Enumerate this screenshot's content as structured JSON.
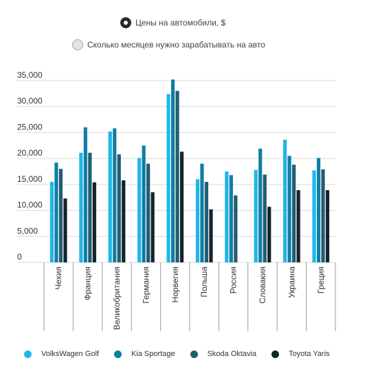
{
  "toggle": {
    "options": [
      {
        "label": "Цены на автомобили, $",
        "selected": true
      },
      {
        "label": "Сколько месяцев нужно зарабатывать на авто",
        "selected": false
      }
    ]
  },
  "colors": {
    "grid": "#d9d9d9",
    "axis_text": "#333333",
    "series": [
      "#1fb6e8",
      "#117ea6",
      "#215d74",
      "#13242c"
    ]
  },
  "chart_data": {
    "type": "bar",
    "categories": [
      "Чехия",
      "Франция",
      "Великобритания",
      "Германия",
      "Норвегия",
      "Польша",
      "Россия",
      "Словакия",
      "Украина",
      "Греция"
    ],
    "series": [
      {
        "name": "VolksWagen Golf",
        "values": [
          15500,
          21100,
          25200,
          20100,
          32400,
          16000,
          17500,
          17800,
          23600,
          17700
        ]
      },
      {
        "name": "Kia Sportage",
        "values": [
          19200,
          26000,
          25800,
          22500,
          35200,
          19000,
          16800,
          21900,
          20500,
          20100
        ]
      },
      {
        "name": "Skoda Oktavia",
        "values": [
          18000,
          21100,
          20800,
          19000,
          33000,
          15500,
          12900,
          16900,
          18800,
          17900
        ]
      },
      {
        "name": "Toyota Yaris",
        "values": [
          12300,
          15400,
          15800,
          13500,
          21300,
          10200,
          null,
          10700,
          13900,
          13900
        ]
      }
    ],
    "y_ticks": [
      "0",
      "5,000",
      "10,000",
      "15,000",
      "20,000",
      "25,000",
      "30,000",
      "35,000"
    ],
    "ylim": [
      0,
      35000
    ],
    "grid": true,
    "legend_position": "bottom"
  }
}
